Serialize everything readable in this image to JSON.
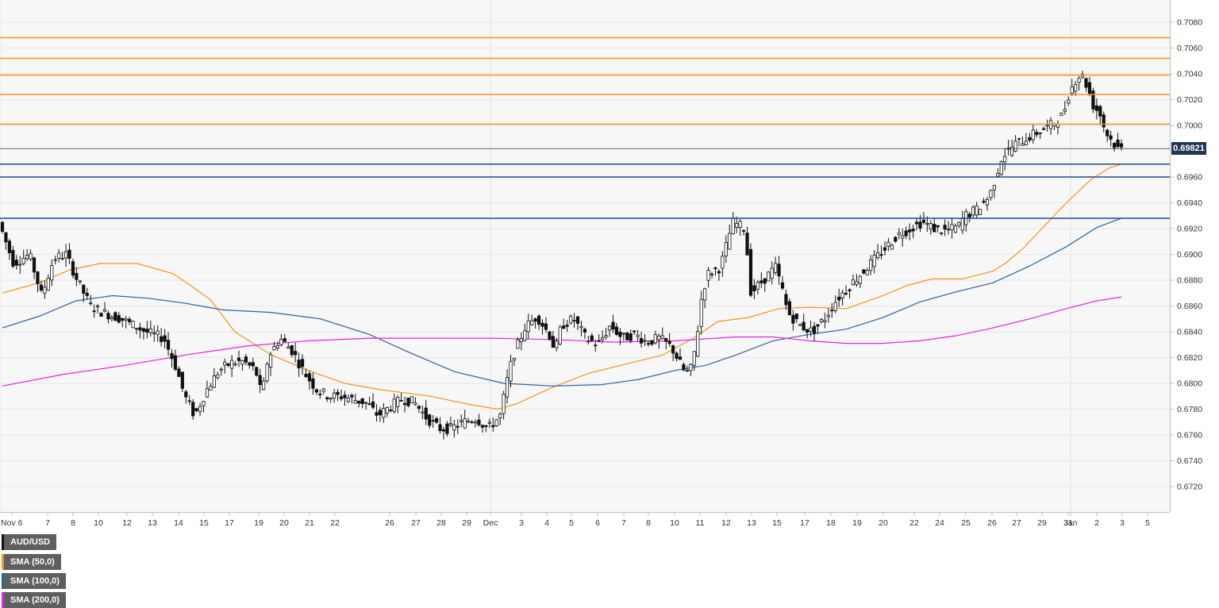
{
  "chart_data": {
    "type": "candlestick",
    "title": "",
    "xlabel": "",
    "ylabel": "",
    "ylim": [
      0.6705,
      0.7095
    ],
    "y_ticks": [
      "0.7080",
      "0.7060",
      "0.7040",
      "0.7020",
      "0.7000",
      "0.6960",
      "0.6940",
      "0.6920",
      "0.6900",
      "0.6880",
      "0.6860",
      "0.6840",
      "0.6820",
      "0.6800",
      "0.6780",
      "0.6760",
      "0.6740",
      "0.6720"
    ],
    "x_ticks": [
      "Nov 6",
      "7",
      "8",
      "10",
      "12",
      "13",
      "14",
      "15",
      "17",
      "19",
      "20",
      "21",
      "22",
      "26",
      "27",
      "28",
      "29",
      "Dec",
      "3",
      "4",
      "5",
      "6",
      "7",
      "8",
      "10",
      "11",
      "12",
      "13",
      "15",
      "17",
      "18",
      "19",
      "20",
      "22",
      "24",
      "25",
      "26",
      "27",
      "29",
      "31",
      "Jan",
      "2",
      "3",
      "5"
    ],
    "current_price": "0.69821",
    "legend": [
      {
        "label": "AUD/USD",
        "color": "#111111"
      },
      {
        "label": "SMA (50,0)",
        "color": "#f7931a"
      },
      {
        "label": "SMA (100,0)",
        "color": "#2d5f9e"
      },
      {
        "label": "SMA (200,0)",
        "color": "#e81ee8"
      }
    ],
    "resistance_levels": [
      0.7068,
      0.7052,
      0.7039,
      0.7024,
      0.7001
    ],
    "support_levels": [
      0.697,
      0.696,
      0.6928
    ],
    "current_line": 0.6982,
    "sma": [
      {
        "name": "SMA (50,0)",
        "color": "#f7931a",
        "points": [
          [
            0,
            0.687
          ],
          [
            0.03,
            0.6878
          ],
          [
            0.055,
            0.6888
          ],
          [
            0.08,
            0.6893
          ],
          [
            0.11,
            0.6893
          ],
          [
            0.14,
            0.6885
          ],
          [
            0.17,
            0.6865
          ],
          [
            0.19,
            0.684
          ],
          [
            0.22,
            0.6822
          ],
          [
            0.25,
            0.681
          ],
          [
            0.28,
            0.68
          ],
          [
            0.31,
            0.6795
          ],
          [
            0.35,
            0.679
          ],
          [
            0.38,
            0.6784
          ],
          [
            0.405,
            0.678
          ],
          [
            0.42,
            0.6784
          ],
          [
            0.45,
            0.6797
          ],
          [
            0.48,
            0.6808
          ],
          [
            0.51,
            0.6815
          ],
          [
            0.54,
            0.6822
          ],
          [
            0.565,
            0.6835
          ],
          [
            0.585,
            0.6848
          ],
          [
            0.61,
            0.6851
          ],
          [
            0.635,
            0.6858
          ],
          [
            0.66,
            0.6859
          ],
          [
            0.69,
            0.6858
          ],
          [
            0.72,
            0.6868
          ],
          [
            0.74,
            0.6876
          ],
          [
            0.76,
            0.6881
          ],
          [
            0.785,
            0.6881
          ],
          [
            0.81,
            0.6887
          ],
          [
            0.82,
            0.6893
          ],
          [
            0.835,
            0.6905
          ],
          [
            0.85,
            0.692
          ],
          [
            0.87,
            0.694
          ],
          [
            0.89,
            0.6958
          ],
          [
            0.905,
            0.6967
          ],
          [
            0.915,
            0.697
          ]
        ]
      },
      {
        "name": "SMA (100,0)",
        "color": "#2d5f9e",
        "points": [
          [
            0,
            0.6843
          ],
          [
            0.03,
            0.6852
          ],
          [
            0.06,
            0.6864
          ],
          [
            0.09,
            0.6868
          ],
          [
            0.12,
            0.6866
          ],
          [
            0.15,
            0.6862
          ],
          [
            0.18,
            0.6857
          ],
          [
            0.22,
            0.6855
          ],
          [
            0.26,
            0.685
          ],
          [
            0.3,
            0.6838
          ],
          [
            0.335,
            0.6823
          ],
          [
            0.37,
            0.6809
          ],
          [
            0.41,
            0.68
          ],
          [
            0.45,
            0.6798
          ],
          [
            0.49,
            0.6799
          ],
          [
            0.52,
            0.6803
          ],
          [
            0.55,
            0.681
          ],
          [
            0.575,
            0.6814
          ],
          [
            0.6,
            0.6822
          ],
          [
            0.63,
            0.6833
          ],
          [
            0.66,
            0.6838
          ],
          [
            0.69,
            0.6842
          ],
          [
            0.72,
            0.6851
          ],
          [
            0.75,
            0.6863
          ],
          [
            0.78,
            0.6871
          ],
          [
            0.81,
            0.6878
          ],
          [
            0.84,
            0.6891
          ],
          [
            0.87,
            0.6906
          ],
          [
            0.895,
            0.6921
          ],
          [
            0.915,
            0.6928
          ]
        ]
      },
      {
        "name": "SMA (200,0)",
        "color": "#e81ee8",
        "points": [
          [
            0,
            0.6798
          ],
          [
            0.05,
            0.6807
          ],
          [
            0.1,
            0.6814
          ],
          [
            0.15,
            0.6822
          ],
          [
            0.2,
            0.6829
          ],
          [
            0.25,
            0.6833
          ],
          [
            0.3,
            0.6835
          ],
          [
            0.35,
            0.6835
          ],
          [
            0.4,
            0.6835
          ],
          [
            0.45,
            0.6834
          ],
          [
            0.5,
            0.6832
          ],
          [
            0.55,
            0.6833
          ],
          [
            0.6,
            0.6836
          ],
          [
            0.63,
            0.6836
          ],
          [
            0.66,
            0.6833
          ],
          [
            0.69,
            0.6831
          ],
          [
            0.72,
            0.6831
          ],
          [
            0.75,
            0.6833
          ],
          [
            0.78,
            0.6837
          ],
          [
            0.81,
            0.6843
          ],
          [
            0.84,
            0.685
          ],
          [
            0.87,
            0.6858
          ],
          [
            0.895,
            0.6864
          ],
          [
            0.915,
            0.6867
          ]
        ]
      }
    ],
    "price_path": [
      [
        0,
        0.6925
      ],
      [
        0.012,
        0.6893
      ],
      [
        0.025,
        0.69
      ],
      [
        0.035,
        0.6868
      ],
      [
        0.045,
        0.6897
      ],
      [
        0.055,
        0.69
      ],
      [
        0.065,
        0.6878
      ],
      [
        0.075,
        0.686
      ],
      [
        0.085,
        0.6855
      ],
      [
        0.1,
        0.685
      ],
      [
        0.12,
        0.684
      ],
      [
        0.135,
        0.6835
      ],
      [
        0.145,
        0.6812
      ],
      [
        0.152,
        0.679
      ],
      [
        0.16,
        0.6775
      ],
      [
        0.17,
        0.6795
      ],
      [
        0.18,
        0.681
      ],
      [
        0.19,
        0.6816
      ],
      [
        0.2,
        0.6817
      ],
      [
        0.21,
        0.681
      ],
      [
        0.215,
        0.679
      ],
      [
        0.22,
        0.682
      ],
      [
        0.23,
        0.6835
      ],
      [
        0.24,
        0.6825
      ],
      [
        0.25,
        0.6808
      ],
      [
        0.26,
        0.6795
      ],
      [
        0.27,
        0.679
      ],
      [
        0.28,
        0.679
      ],
      [
        0.3,
        0.6785
      ],
      [
        0.31,
        0.6775
      ],
      [
        0.32,
        0.6782
      ],
      [
        0.33,
        0.6788
      ],
      [
        0.34,
        0.6785
      ],
      [
        0.35,
        0.6773
      ],
      [
        0.36,
        0.6765
      ],
      [
        0.37,
        0.6765
      ],
      [
        0.38,
        0.677
      ],
      [
        0.39,
        0.6773
      ],
      [
        0.4,
        0.6765
      ],
      [
        0.41,
        0.6775
      ],
      [
        0.415,
        0.68
      ],
      [
        0.42,
        0.682
      ],
      [
        0.43,
        0.6843
      ],
      [
        0.44,
        0.6852
      ],
      [
        0.45,
        0.6838
      ],
      [
        0.455,
        0.6825
      ],
      [
        0.46,
        0.6845
      ],
      [
        0.47,
        0.685
      ],
      [
        0.48,
        0.6835
      ],
      [
        0.49,
        0.683
      ],
      [
        0.5,
        0.6845
      ],
      [
        0.51,
        0.6835
      ],
      [
        0.52,
        0.6838
      ],
      [
        0.53,
        0.6832
      ],
      [
        0.54,
        0.6835
      ],
      [
        0.55,
        0.6828
      ],
      [
        0.56,
        0.681
      ],
      [
        0.565,
        0.6808
      ],
      [
        0.57,
        0.683
      ],
      [
        0.575,
        0.687
      ],
      [
        0.58,
        0.6885
      ],
      [
        0.59,
        0.689
      ],
      [
        0.6,
        0.6925
      ],
      [
        0.61,
        0.692
      ],
      [
        0.615,
        0.687
      ],
      [
        0.625,
        0.688
      ],
      [
        0.635,
        0.689
      ],
      [
        0.64,
        0.6875
      ],
      [
        0.645,
        0.6855
      ],
      [
        0.655,
        0.6845
      ],
      [
        0.665,
        0.684
      ],
      [
        0.675,
        0.685
      ],
      [
        0.685,
        0.6865
      ],
      [
        0.695,
        0.6875
      ],
      [
        0.705,
        0.6885
      ],
      [
        0.715,
        0.6895
      ],
      [
        0.725,
        0.6905
      ],
      [
        0.735,
        0.6915
      ],
      [
        0.745,
        0.692
      ],
      [
        0.755,
        0.6925
      ],
      [
        0.765,
        0.692
      ],
      [
        0.775,
        0.6918
      ],
      [
        0.785,
        0.6922
      ],
      [
        0.79,
        0.693
      ],
      [
        0.8,
        0.6935
      ],
      [
        0.81,
        0.6945
      ],
      [
        0.815,
        0.696
      ],
      [
        0.82,
        0.6975
      ],
      [
        0.83,
        0.6985
      ],
      [
        0.84,
        0.699
      ],
      [
        0.85,
        0.6995
      ],
      [
        0.86,
        0.7
      ],
      [
        0.87,
        0.7008
      ],
      [
        0.875,
        0.7025
      ],
      [
        0.88,
        0.7035
      ],
      [
        0.885,
        0.704
      ],
      [
        0.89,
        0.703
      ],
      [
        0.895,
        0.7015
      ],
      [
        0.9,
        0.701
      ],
      [
        0.905,
        0.6995
      ],
      [
        0.91,
        0.6988
      ],
      [
        0.915,
        0.6982
      ]
    ],
    "x_range": [
      0,
      0.915
    ]
  }
}
